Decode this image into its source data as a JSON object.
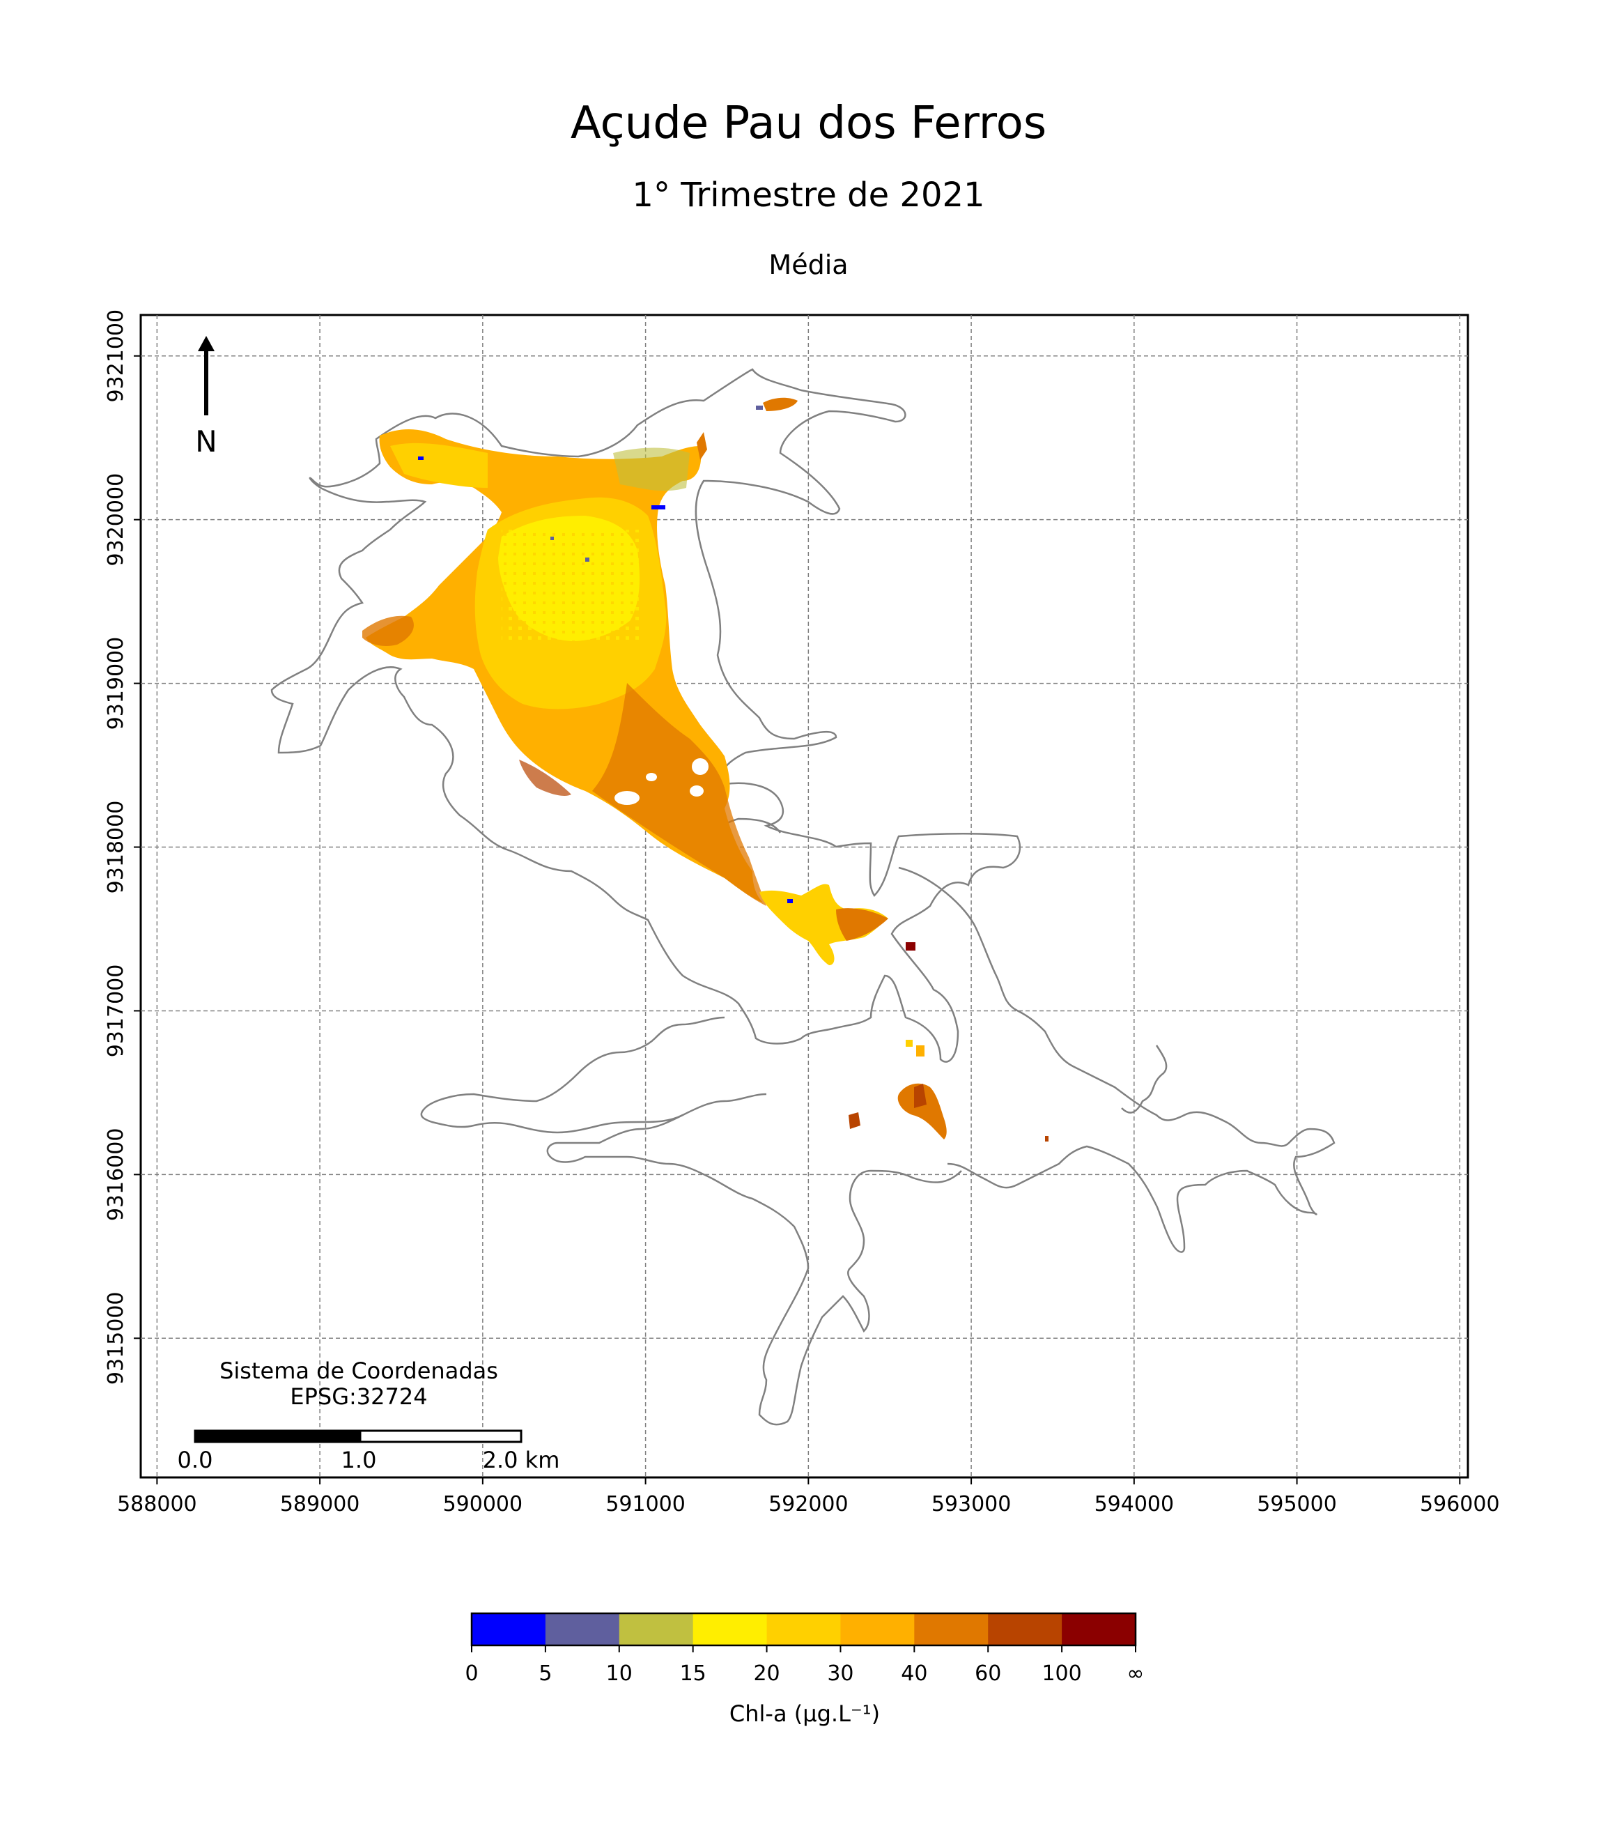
{
  "header": {
    "title": "Açude Pau dos Ferros",
    "subtitle": "1° Trimestre de 2021",
    "panel_title": "Média"
  },
  "north_arrow": {
    "label": "N"
  },
  "crs_note": {
    "line1": "Sistema de Coordenadas",
    "line2": "EPSG:32724"
  },
  "scale_bar": {
    "labels": [
      "0.0",
      "1.0",
      "2.0 km"
    ]
  },
  "colorbar": {
    "label": "Chl-a (μg.L⁻¹)",
    "ticks": [
      "0",
      "5",
      "10",
      "15",
      "20",
      "30",
      "40",
      "60",
      "100",
      "∞"
    ],
    "colors": [
      "#0000ff",
      "#5f5f9e",
      "#c0c040",
      "#ffee00",
      "#ffd000",
      "#ffb000",
      "#e07800",
      "#b84400",
      "#8b0000"
    ]
  },
  "chart_data": {
    "type": "heatmap",
    "title": "Açude Pau dos Ferros",
    "xlabel": "",
    "ylabel": "",
    "xlim": [
      587900,
      596050
    ],
    "ylim": [
      9314150,
      9321250
    ],
    "x_ticks": [
      588000,
      589000,
      590000,
      591000,
      592000,
      593000,
      594000,
      595000,
      596000
    ],
    "y_ticks": [
      9315000,
      9316000,
      9317000,
      9318000,
      9319000,
      9320000,
      9321000
    ],
    "grid": true,
    "x_tick_labels": [
      "588000",
      "589000",
      "590000",
      "591000",
      "592000",
      "593000",
      "594000",
      "595000",
      "596000"
    ],
    "y_tick_labels": [
      "9315000",
      "9316000",
      "9317000",
      "9318000",
      "9319000",
      "9320000",
      "9321000"
    ]
  }
}
